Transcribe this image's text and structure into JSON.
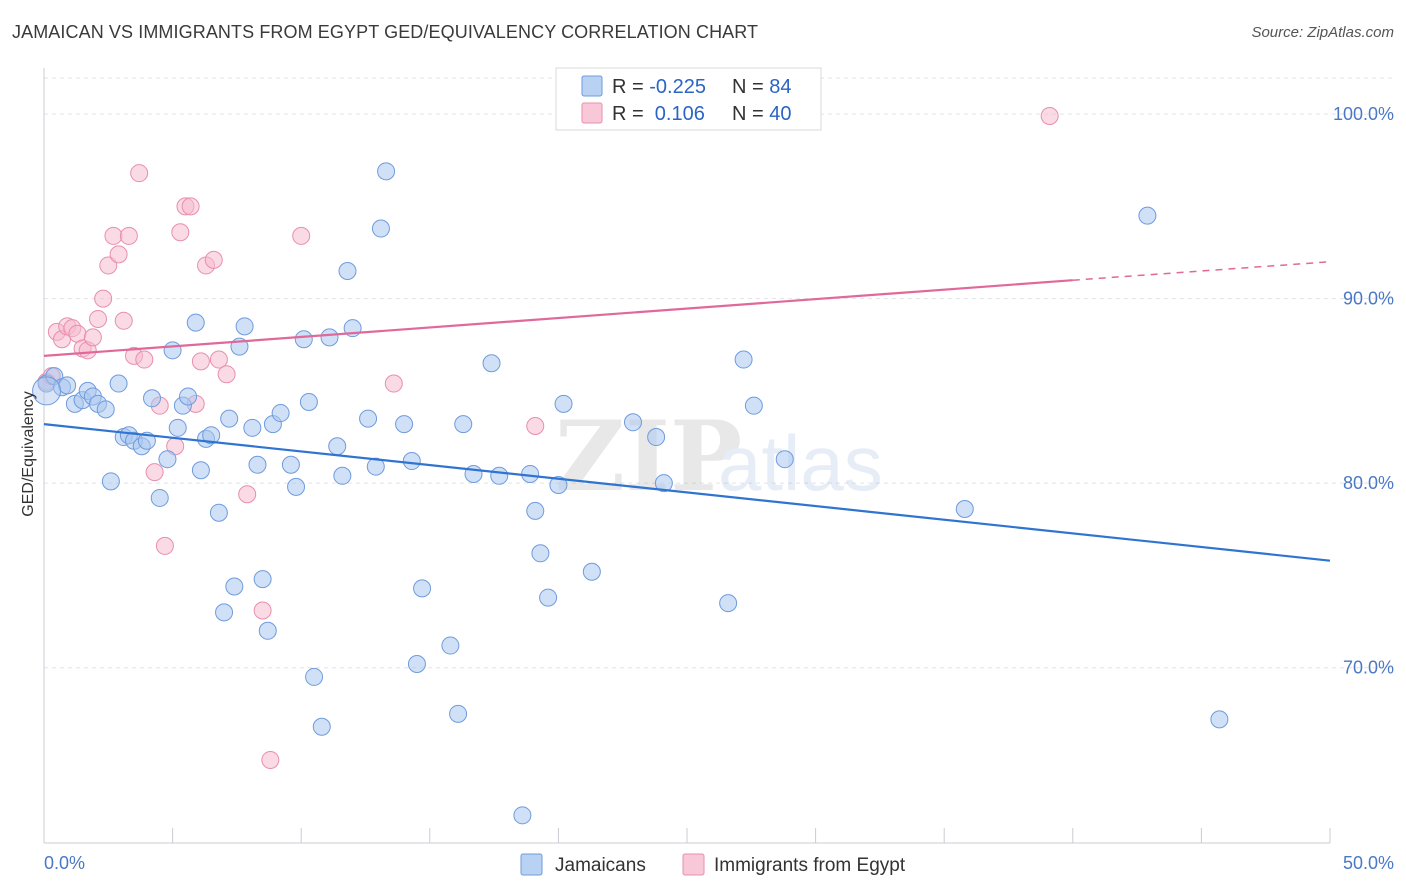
{
  "header": {
    "title": "JAMAICAN VS IMMIGRANTS FROM EGYPT GED/EQUIVALENCY CORRELATION CHART",
    "source": "Source: ZipAtlas.com"
  },
  "watermark": {
    "zip": "ZIP",
    "atlas": "atlas"
  },
  "legend": {
    "row1": {
      "r_label": "R = ",
      "r_value": "-0.225",
      "n_label": "N = ",
      "n_value": "84"
    },
    "row2": {
      "r_label": "R = ",
      "r_value": " 0.106",
      "n_label": "N = ",
      "n_value": "40"
    }
  },
  "bottom_legend": {
    "series1": "Jamaicans",
    "series2": "Immigrants from Egypt"
  },
  "colors": {
    "blue_fill": "#aac6ee",
    "blue_stroke": "#6f9bdd",
    "blue_line": "#2f74d0",
    "pink_fill": "#f6bcd0",
    "pink_stroke": "#e88fac",
    "pink_line": "#e0699a",
    "grid": "#dfe3ea",
    "axis": "#c8ccd4"
  },
  "chart_data": {
    "type": "scatter",
    "title": "JAMAICAN VS IMMIGRANTS FROM EGYPT GED/EQUIVALENCY CORRELATION CHART",
    "xlabel": "",
    "ylabel": "GED/Equivalency",
    "xlim": [
      0,
      50
    ],
    "ylim": [
      60.5,
      102.5
    ],
    "x_tick_labels": [
      "0.0%",
      "50.0%"
    ],
    "y_ticks": [
      70,
      80,
      90,
      100
    ],
    "y_tick_labels": [
      "70.0%",
      "80.0%",
      "90.0%",
      "100.0%"
    ],
    "series": [
      {
        "name": "Jamaicans",
        "r": -0.225,
        "n": 84,
        "trend": {
          "x0": 0,
          "y0": 83.2,
          "x1": 50,
          "y1": 75.8
        },
        "points": [
          [
            0.1,
            85.4
          ],
          [
            0.4,
            85.8
          ],
          [
            0.7,
            85.2
          ],
          [
            0.9,
            85.3
          ],
          [
            1.2,
            84.3
          ],
          [
            1.5,
            84.5
          ],
          [
            1.7,
            85.0
          ],
          [
            1.9,
            84.7
          ],
          [
            2.1,
            84.3
          ],
          [
            2.4,
            84.0
          ],
          [
            2.6,
            80.1
          ],
          [
            2.9,
            85.4
          ],
          [
            3.1,
            82.5
          ],
          [
            3.3,
            82.6
          ],
          [
            3.5,
            82.3
          ],
          [
            3.8,
            82.0
          ],
          [
            4.0,
            82.3
          ],
          [
            4.2,
            84.6
          ],
          [
            4.5,
            79.2
          ],
          [
            4.8,
            81.3
          ],
          [
            5.0,
            87.2
          ],
          [
            5.2,
            83.0
          ],
          [
            5.4,
            84.2
          ],
          [
            5.6,
            84.7
          ],
          [
            5.9,
            88.7
          ],
          [
            6.1,
            80.7
          ],
          [
            6.3,
            82.4
          ],
          [
            6.5,
            82.6
          ],
          [
            6.8,
            78.4
          ],
          [
            7.0,
            73.0
          ],
          [
            7.2,
            83.5
          ],
          [
            7.4,
            74.4
          ],
          [
            7.6,
            87.4
          ],
          [
            7.8,
            88.5
          ],
          [
            8.1,
            83.0
          ],
          [
            8.3,
            81.0
          ],
          [
            8.5,
            74.8
          ],
          [
            8.7,
            72.0
          ],
          [
            8.9,
            83.2
          ],
          [
            9.2,
            83.8
          ],
          [
            9.6,
            81.0
          ],
          [
            9.8,
            79.8
          ],
          [
            10.1,
            87.8
          ],
          [
            10.3,
            84.4
          ],
          [
            10.5,
            69.5
          ],
          [
            10.8,
            66.8
          ],
          [
            11.1,
            87.9
          ],
          [
            11.4,
            82.0
          ],
          [
            11.6,
            80.4
          ],
          [
            11.8,
            91.5
          ],
          [
            12.0,
            88.4
          ],
          [
            12.6,
            83.5
          ],
          [
            12.9,
            80.9
          ],
          [
            13.1,
            93.8
          ],
          [
            13.3,
            96.9
          ],
          [
            14.0,
            83.2
          ],
          [
            14.3,
            81.2
          ],
          [
            14.5,
            70.2
          ],
          [
            14.7,
            74.3
          ],
          [
            15.8,
            71.2
          ],
          [
            16.1,
            67.5
          ],
          [
            16.3,
            83.2
          ],
          [
            16.7,
            80.5
          ],
          [
            17.4,
            86.5
          ],
          [
            17.7,
            80.4
          ],
          [
            18.6,
            62.0
          ],
          [
            18.9,
            80.5
          ],
          [
            19.1,
            78.5
          ],
          [
            19.3,
            76.2
          ],
          [
            19.6,
            73.8
          ],
          [
            20.0,
            79.9
          ],
          [
            20.2,
            84.3
          ],
          [
            21.3,
            75.2
          ],
          [
            22.9,
            83.3
          ],
          [
            23.8,
            82.5
          ],
          [
            24.1,
            80.0
          ],
          [
            26.6,
            73.5
          ],
          [
            27.2,
            86.7
          ],
          [
            27.6,
            84.2
          ],
          [
            28.8,
            81.3
          ],
          [
            35.8,
            78.6
          ],
          [
            42.9,
            94.5
          ],
          [
            45.7,
            67.2
          ],
          [
            0.1,
            85.0
          ]
        ]
      },
      {
        "name": "Immigrants from Egypt",
        "r": 0.106,
        "n": 40,
        "trend": {
          "x0": 0,
          "y0": 86.9,
          "x1": 40,
          "y1": 91.0,
          "dash_x1": 50,
          "dash_y1": 92.0
        },
        "points": [
          [
            0.1,
            85.5
          ],
          [
            0.3,
            85.8
          ],
          [
            0.5,
            88.2
          ],
          [
            0.7,
            87.8
          ],
          [
            0.9,
            88.5
          ],
          [
            1.1,
            88.4
          ],
          [
            1.3,
            88.1
          ],
          [
            1.5,
            87.3
          ],
          [
            1.7,
            87.2
          ],
          [
            1.9,
            87.9
          ],
          [
            2.1,
            88.9
          ],
          [
            2.3,
            90.0
          ],
          [
            2.5,
            91.8
          ],
          [
            2.7,
            93.4
          ],
          [
            2.9,
            92.4
          ],
          [
            3.1,
            88.8
          ],
          [
            3.3,
            93.4
          ],
          [
            3.5,
            86.9
          ],
          [
            3.7,
            96.8
          ],
          [
            3.9,
            86.7
          ],
          [
            4.3,
            80.6
          ],
          [
            4.5,
            84.2
          ],
          [
            4.7,
            76.6
          ],
          [
            5.1,
            82.0
          ],
          [
            5.3,
            93.6
          ],
          [
            5.5,
            95.0
          ],
          [
            5.7,
            95.0
          ],
          [
            5.9,
            84.3
          ],
          [
            6.1,
            86.6
          ],
          [
            6.3,
            91.8
          ],
          [
            6.6,
            92.1
          ],
          [
            6.8,
            86.7
          ],
          [
            7.1,
            85.9
          ],
          [
            7.9,
            79.4
          ],
          [
            8.5,
            73.1
          ],
          [
            8.8,
            65.0
          ],
          [
            10.0,
            93.4
          ],
          [
            13.6,
            85.4
          ],
          [
            19.1,
            83.1
          ],
          [
            39.1,
            99.9
          ]
        ]
      }
    ]
  }
}
